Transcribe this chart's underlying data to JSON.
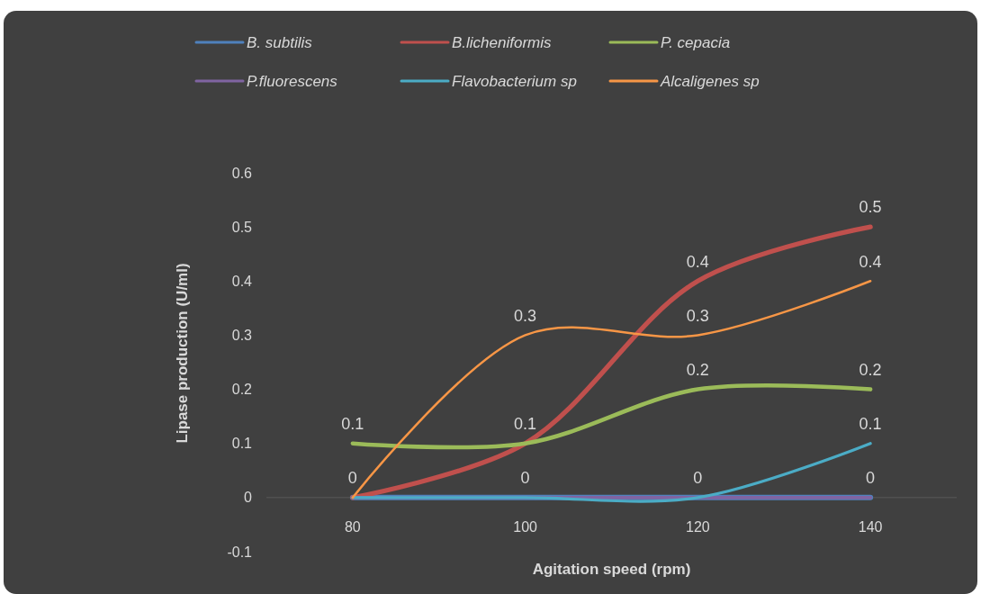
{
  "chart_data": {
    "type": "line",
    "xlabel": "Agitation speed (rpm)",
    "ylabel": "Lipase production (U/ml)",
    "categories": [
      "80",
      "100",
      "120",
      "140"
    ],
    "series": [
      {
        "name": "B. subtilis",
        "color": "#4f81bd",
        "values": [
          0,
          0,
          0,
          0
        ]
      },
      {
        "name": "B.licheniformis",
        "color": "#c0504d",
        "values": [
          0,
          0.1,
          0.4,
          0.5
        ],
        "value_labels": [
          null,
          "0.1",
          "0.4",
          "0.5"
        ]
      },
      {
        "name": "P. cepacia",
        "color": "#9bbb59",
        "values": [
          0.1,
          0.1,
          0.2,
          0.2
        ],
        "value_labels": [
          "0.1",
          null,
          "0.2",
          "0.2"
        ]
      },
      {
        "name": "P.fluorescens",
        "color": "#8064a2",
        "values": [
          0,
          0,
          0,
          0
        ],
        "value_labels": [
          null,
          null,
          null,
          null
        ]
      },
      {
        "name": "Flavobacterium sp",
        "color": "#4bacc6",
        "values": [
          0,
          0,
          0,
          0.1
        ],
        "value_labels": [
          null,
          null,
          null,
          "0.1"
        ]
      },
      {
        "name": "Alcaligenes sp",
        "color": "#f79646",
        "values": [
          0,
          0.3,
          0.3,
          0.4
        ],
        "value_labels": [
          null,
          "0.3",
          "0.3",
          "0.4"
        ]
      }
    ],
    "ylim": [
      -0.1,
      0.6
    ],
    "yticks": [
      -0.1,
      0,
      0.1,
      0.2,
      0.3,
      0.4,
      0.5,
      0.6
    ],
    "grid": false,
    "legend": "top",
    "data_labels": true,
    "marker": "none",
    "line_style": "solid"
  }
}
